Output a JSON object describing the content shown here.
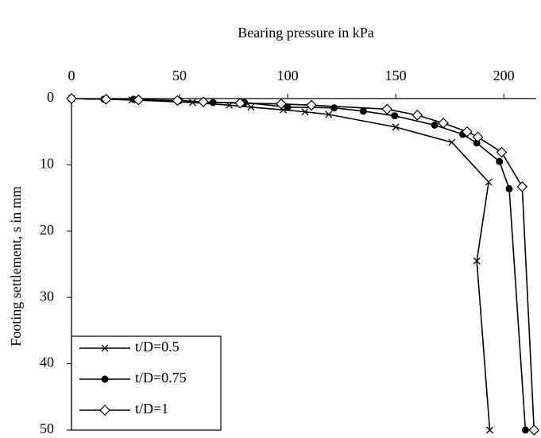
{
  "chart_data": {
    "type": "line",
    "title": "Bearing pressure in kPa",
    "y_label": "Footing settlement, s in mm",
    "xlim": [
      0,
      215
    ],
    "xticks": [
      0,
      50,
      100,
      150,
      200
    ],
    "ylim": [
      0,
      50
    ],
    "yticks": [
      0,
      10,
      20,
      30,
      40,
      50
    ],
    "y_inverted": true,
    "x_axis_position": "top",
    "grid": false,
    "legend": "lower left",
    "series": [
      {
        "name": "t/D=0.5",
        "color": "#000000",
        "marker": "x",
        "x": [
          0,
          28,
          56,
          73,
          83,
          98,
          108,
          119,
          150,
          176,
          193,
          187.5,
          193.5
        ],
        "values": [
          0,
          0.2,
          0.6,
          1,
          1.3,
          1.7,
          2,
          2.4,
          4.3,
          6.6,
          12.6,
          24.5,
          50
        ]
      },
      {
        "name": "t/D=0.75",
        "color": "#000000",
        "marker": "circle",
        "x": [
          0,
          15,
          28.7,
          50,
          65.5,
          80,
          100,
          121.5,
          135,
          149.5,
          168,
          181,
          187.5,
          198,
          202.5,
          210
        ],
        "values": [
          0,
          0.1,
          0.1,
          0.3,
          0.6,
          0.6,
          1.3,
          1.4,
          1.9,
          2.6,
          4,
          5.4,
          6.7,
          9.5,
          13.6,
          50
        ]
      },
      {
        "name": "t/D=1",
        "color": "#000000",
        "marker": "diamond",
        "x": [
          0,
          16,
          31,
          49,
          61,
          78,
          97,
          111,
          146,
          160,
          172,
          183,
          188,
          199,
          208.5,
          214
        ],
        "values": [
          0,
          0.1,
          0.2,
          0.3,
          0.5,
          0.7,
          0.8,
          1,
          1.6,
          2.5,
          3.7,
          5,
          5.8,
          8.1,
          13.3,
          50
        ]
      }
    ]
  }
}
